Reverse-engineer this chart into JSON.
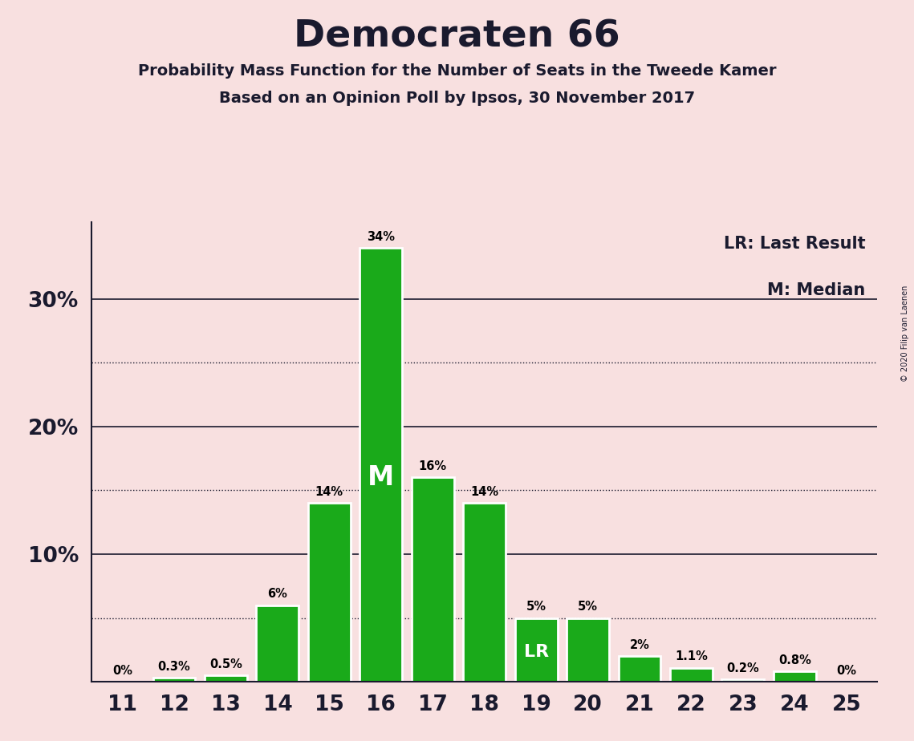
{
  "title": "Democraten 66",
  "subtitle1": "Probability Mass Function for the Number of Seats in the Tweede Kamer",
  "subtitle2": "Based on an Opinion Poll by Ipsos, 30 November 2017",
  "copyright": "© 2020 Filip van Laenen",
  "seats": [
    11,
    12,
    13,
    14,
    15,
    16,
    17,
    18,
    19,
    20,
    21,
    22,
    23,
    24,
    25
  ],
  "values": [
    0.0,
    0.3,
    0.5,
    6.0,
    14.0,
    34.0,
    16.0,
    14.0,
    5.0,
    5.0,
    2.0,
    1.1,
    0.2,
    0.8,
    0.0
  ],
  "labels": [
    "0%",
    "0.3%",
    "0.5%",
    "6%",
    "14%",
    "34%",
    "16%",
    "14%",
    "5%",
    "5%",
    "2%",
    "1.1%",
    "0.2%",
    "0.8%",
    "0%"
  ],
  "bar_color": "#1aaa1a",
  "background_color": "#f8e0e0",
  "median_seat": 16,
  "last_result_seat": 19,
  "median_label": "M",
  "last_result_label": "LR",
  "legend_lr": "LR: Last Result",
  "legend_m": "M: Median",
  "ylim": [
    0,
    36
  ],
  "solid_gridlines": [
    10,
    20,
    30
  ],
  "dotted_gridlines": [
    5,
    15,
    25
  ],
  "ytick_positions": [
    10,
    20,
    30
  ],
  "ytick_labels": [
    "10%",
    "20%",
    "30%"
  ]
}
